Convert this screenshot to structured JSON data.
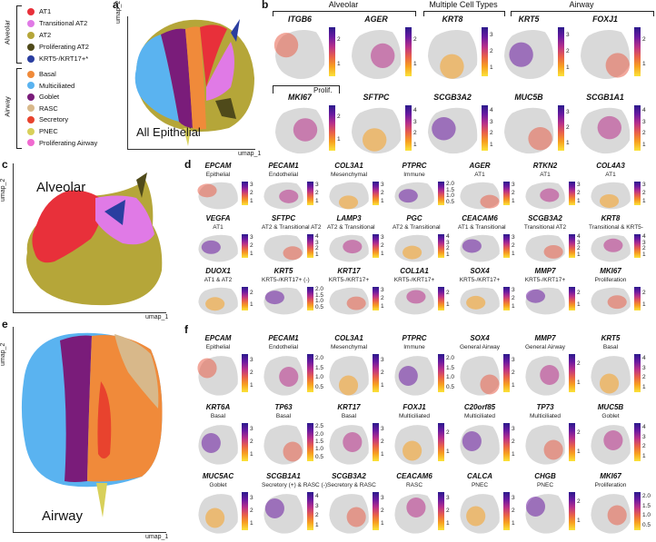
{
  "panels": {
    "a": "a",
    "b": "b",
    "c": "c",
    "d": "d",
    "e": "e",
    "f": "f"
  },
  "legend": {
    "group_alveolar": "Alveolar",
    "group_airway": "Airway",
    "alveolar": [
      {
        "label": "AT1",
        "color": "#e8303a"
      },
      {
        "label": "Transitional AT2",
        "color": "#e07ae6"
      },
      {
        "label": "AT2",
        "color": "#b5a639"
      },
      {
        "label": "Proliferating AT2",
        "color": "#4f4a1a"
      },
      {
        "label": "KRT5-/KRT17+*",
        "color": "#2a3ea0"
      }
    ],
    "airway": [
      {
        "label": "Basal",
        "color": "#f08a3a"
      },
      {
        "label": "Multiciliated",
        "color": "#5ab3f0"
      },
      {
        "label": "Goblet",
        "color": "#7a1c7a"
      },
      {
        "label": "RASC",
        "color": "#d8b88a"
      },
      {
        "label": "Secretory",
        "color": "#e8432e"
      },
      {
        "label": "PNEC",
        "color": "#d8d05a"
      },
      {
        "label": "Proliferating Airway",
        "color": "#f06ad0"
      }
    ]
  },
  "axes": {
    "umap1": "umap_1",
    "umap2": "umap_2"
  },
  "titles": {
    "a": "All Epithelial",
    "c": "Alveolar",
    "e": "Airway"
  },
  "b_headers": {
    "alveolar": "Alveolar",
    "multiple": "Multiple Cell Types",
    "airway": "Airway",
    "prolif": "Prolif."
  },
  "b_genes": [
    {
      "gene": "ITGB6",
      "ticks": [
        "2",
        "1"
      ]
    },
    {
      "gene": "AGER",
      "ticks": [
        "2",
        "1"
      ]
    },
    {
      "gene": "KRT8",
      "ticks": [
        "3",
        "2",
        "1"
      ]
    },
    {
      "gene": "KRT5",
      "ticks": [
        "3",
        "2",
        "1"
      ]
    },
    {
      "gene": "FOXJ1",
      "ticks": [
        "2",
        "1"
      ]
    },
    {
      "gene": "MKI67",
      "ticks": [
        "2",
        "1"
      ]
    },
    {
      "gene": "SFTPC",
      "ticks": [
        "4",
        "3",
        "2",
        "1"
      ]
    },
    {
      "gene": "SCGB3A2",
      "ticks": [
        "4",
        "3",
        "2",
        "1"
      ]
    },
    {
      "gene": "MUC5B",
      "ticks": [
        "3",
        "2",
        "1"
      ]
    },
    {
      "gene": "SCGB1A1",
      "ticks": [
        "4",
        "3",
        "2",
        "1"
      ]
    }
  ],
  "d_genes": [
    {
      "gene": "EPCAM",
      "sub": "Epithelial",
      "ticks": [
        "3",
        "2",
        "1"
      ]
    },
    {
      "gene": "PECAM1",
      "sub": "Endothelial",
      "ticks": [
        "3",
        "2",
        "1"
      ]
    },
    {
      "gene": "COL3A1",
      "sub": "Mesenchymal",
      "ticks": [
        "3",
        "2",
        "1"
      ]
    },
    {
      "gene": "PTPRC",
      "sub": "Immune",
      "ticks": [
        "2.0",
        "1.5",
        "1.0",
        "0.5"
      ]
    },
    {
      "gene": "AGER",
      "sub": "AT1",
      "ticks": [
        "3",
        "2",
        "1"
      ]
    },
    {
      "gene": "RTKN2",
      "sub": "AT1",
      "ticks": [
        "3",
        "2",
        "1"
      ]
    },
    {
      "gene": "COL4A3",
      "sub": "AT1",
      "ticks": [
        "3",
        "2",
        "1"
      ]
    },
    {
      "gene": "VEGFA",
      "sub": "AT1",
      "ticks": [
        "3",
        "2",
        "1"
      ]
    },
    {
      "gene": "SFTPC",
      "sub": "AT2 & Transitional AT2",
      "ticks": [
        "4",
        "3",
        "2",
        "1"
      ]
    },
    {
      "gene": "LAMP3",
      "sub": "AT2 & Transitional",
      "ticks": [
        "3",
        "2",
        "1"
      ]
    },
    {
      "gene": "PGC",
      "sub": "AT2 & Transitional",
      "ticks": [
        "4",
        "3",
        "2",
        "1"
      ]
    },
    {
      "gene": "CEACAM6",
      "sub": "AT1 & Transitional",
      "ticks": [
        "3",
        "2",
        "1"
      ]
    },
    {
      "gene": "SCGB3A2",
      "sub": "Transitional AT2",
      "ticks": [
        "4",
        "3",
        "2",
        "1"
      ]
    },
    {
      "gene": "KRT8",
      "sub": "Transitional & KRT5-",
      "ticks": [
        "4",
        "3",
        "2",
        "1"
      ]
    },
    {
      "gene": "DUOX1",
      "sub": "AT1 & AT2",
      "ticks": [
        "2",
        "1"
      ]
    },
    {
      "gene": "KRT5",
      "sub": "KRT5-/KRT17+ (-)",
      "ticks": [
        "2.0",
        "1.5",
        "1.0",
        "0.5"
      ]
    },
    {
      "gene": "KRT17",
      "sub": "KRT5-/KRT17+",
      "ticks": [
        "3",
        "2",
        "1"
      ]
    },
    {
      "gene": "COL1A1",
      "sub": "KRT5-/KRT17+",
      "ticks": [
        "2",
        "1"
      ]
    },
    {
      "gene": "SOX4",
      "sub": "KRT5-/KRT17+",
      "ticks": [
        "3",
        "2",
        "1"
      ]
    },
    {
      "gene": "MMP7",
      "sub": "KRT5-/KRT17+",
      "ticks": [
        "2",
        "1"
      ]
    },
    {
      "gene": "MKI67",
      "sub": "Proliferation",
      "ticks": [
        "2",
        "1"
      ]
    }
  ],
  "f_genes": [
    {
      "gene": "EPCAM",
      "sub": "Epithelial",
      "ticks": [
        "3",
        "2",
        "1"
      ]
    },
    {
      "gene": "PECAM1",
      "sub": "Endothelial",
      "ticks": [
        "2.0",
        "1.5",
        "1.0",
        "0.5"
      ]
    },
    {
      "gene": "COL3A1",
      "sub": "Mesenchymal",
      "ticks": [
        "3",
        "2",
        "1"
      ]
    },
    {
      "gene": "PTPRC",
      "sub": "Immune",
      "ticks": [
        "2.0",
        "1.5",
        "1.0",
        "0.5"
      ]
    },
    {
      "gene": "SOX4",
      "sub": "General Airway",
      "ticks": [
        "3",
        "2",
        "1"
      ]
    },
    {
      "gene": "MMP7",
      "sub": "General Airway",
      "ticks": [
        "2",
        "1"
      ]
    },
    {
      "gene": "KRT5",
      "sub": "Basal",
      "ticks": [
        "4",
        "3",
        "2",
        "1"
      ]
    },
    {
      "gene": "KRT6A",
      "sub": "Basal",
      "ticks": [
        "3",
        "2",
        "1"
      ]
    },
    {
      "gene": "TP63",
      "sub": "Basal",
      "ticks": [
        "2.5",
        "2.0",
        "1.5",
        "1.0",
        "0.5"
      ]
    },
    {
      "gene": "KRT17",
      "sub": "Basal",
      "ticks": [
        "3",
        "2",
        "1"
      ]
    },
    {
      "gene": "FOXJ1",
      "sub": "Multiciliated",
      "ticks": [
        "2",
        "1"
      ]
    },
    {
      "gene": "C20orf85",
      "sub": "Multiciliated",
      "ticks": [
        "3",
        "2",
        "1"
      ]
    },
    {
      "gene": "TP73",
      "sub": "Multiciliated",
      "ticks": [
        "2",
        "1"
      ]
    },
    {
      "gene": "MUC5B",
      "sub": "Goblet",
      "ticks": [
        "4",
        "3",
        "2",
        "1"
      ]
    },
    {
      "gene": "MUC5AC",
      "sub": "Goblet",
      "ticks": [
        "3",
        "2",
        "1"
      ]
    },
    {
      "gene": "SCGB1A1",
      "sub": "Secretory (+) & RASC (-)",
      "ticks": [
        "4",
        "3",
        "2",
        "1"
      ]
    },
    {
      "gene": "SCGB3A2",
      "sub": "Secretory & RASC",
      "ticks": [
        "3",
        "2",
        "1"
      ]
    },
    {
      "gene": "CEACAM6",
      "sub": "RASC",
      "ticks": [
        "3",
        "2",
        "1"
      ]
    },
    {
      "gene": "CALCA",
      "sub": "PNEC",
      "ticks": [
        "3",
        "2",
        "1"
      ]
    },
    {
      "gene": "CHGB",
      "sub": "PNEC",
      "ticks": [
        "2",
        "1"
      ]
    },
    {
      "gene": "MKI67",
      "sub": "Proliferation",
      "ticks": [
        "2.0",
        "1.5",
        "1.0",
        "0.5"
      ]
    }
  ]
}
